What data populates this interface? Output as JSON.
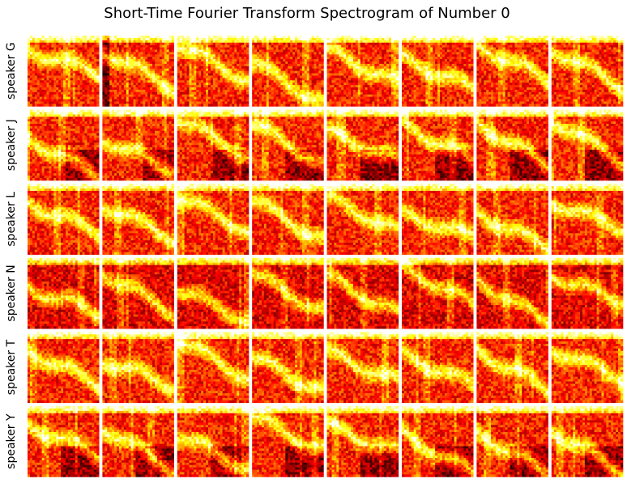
{
  "chart_data": {
    "type": "heatmap",
    "title": "Short-Time Fourier Transform Spectrogram of Number 0",
    "row_labels": [
      "speaker G",
      "speaker J",
      "speaker L",
      "speaker N",
      "speaker T",
      "speaker Y"
    ],
    "columns_per_row": 8,
    "colormap": "hot",
    "axes_visible": false,
    "grid": false,
    "legend": "none"
  },
  "colors": {
    "background": "#ffffff",
    "colormap_low": "#000000",
    "colormap_mid_red": "#ff0000",
    "colormap_mid_yellow": "#ffff00",
    "colormap_high": "#ffffff"
  }
}
